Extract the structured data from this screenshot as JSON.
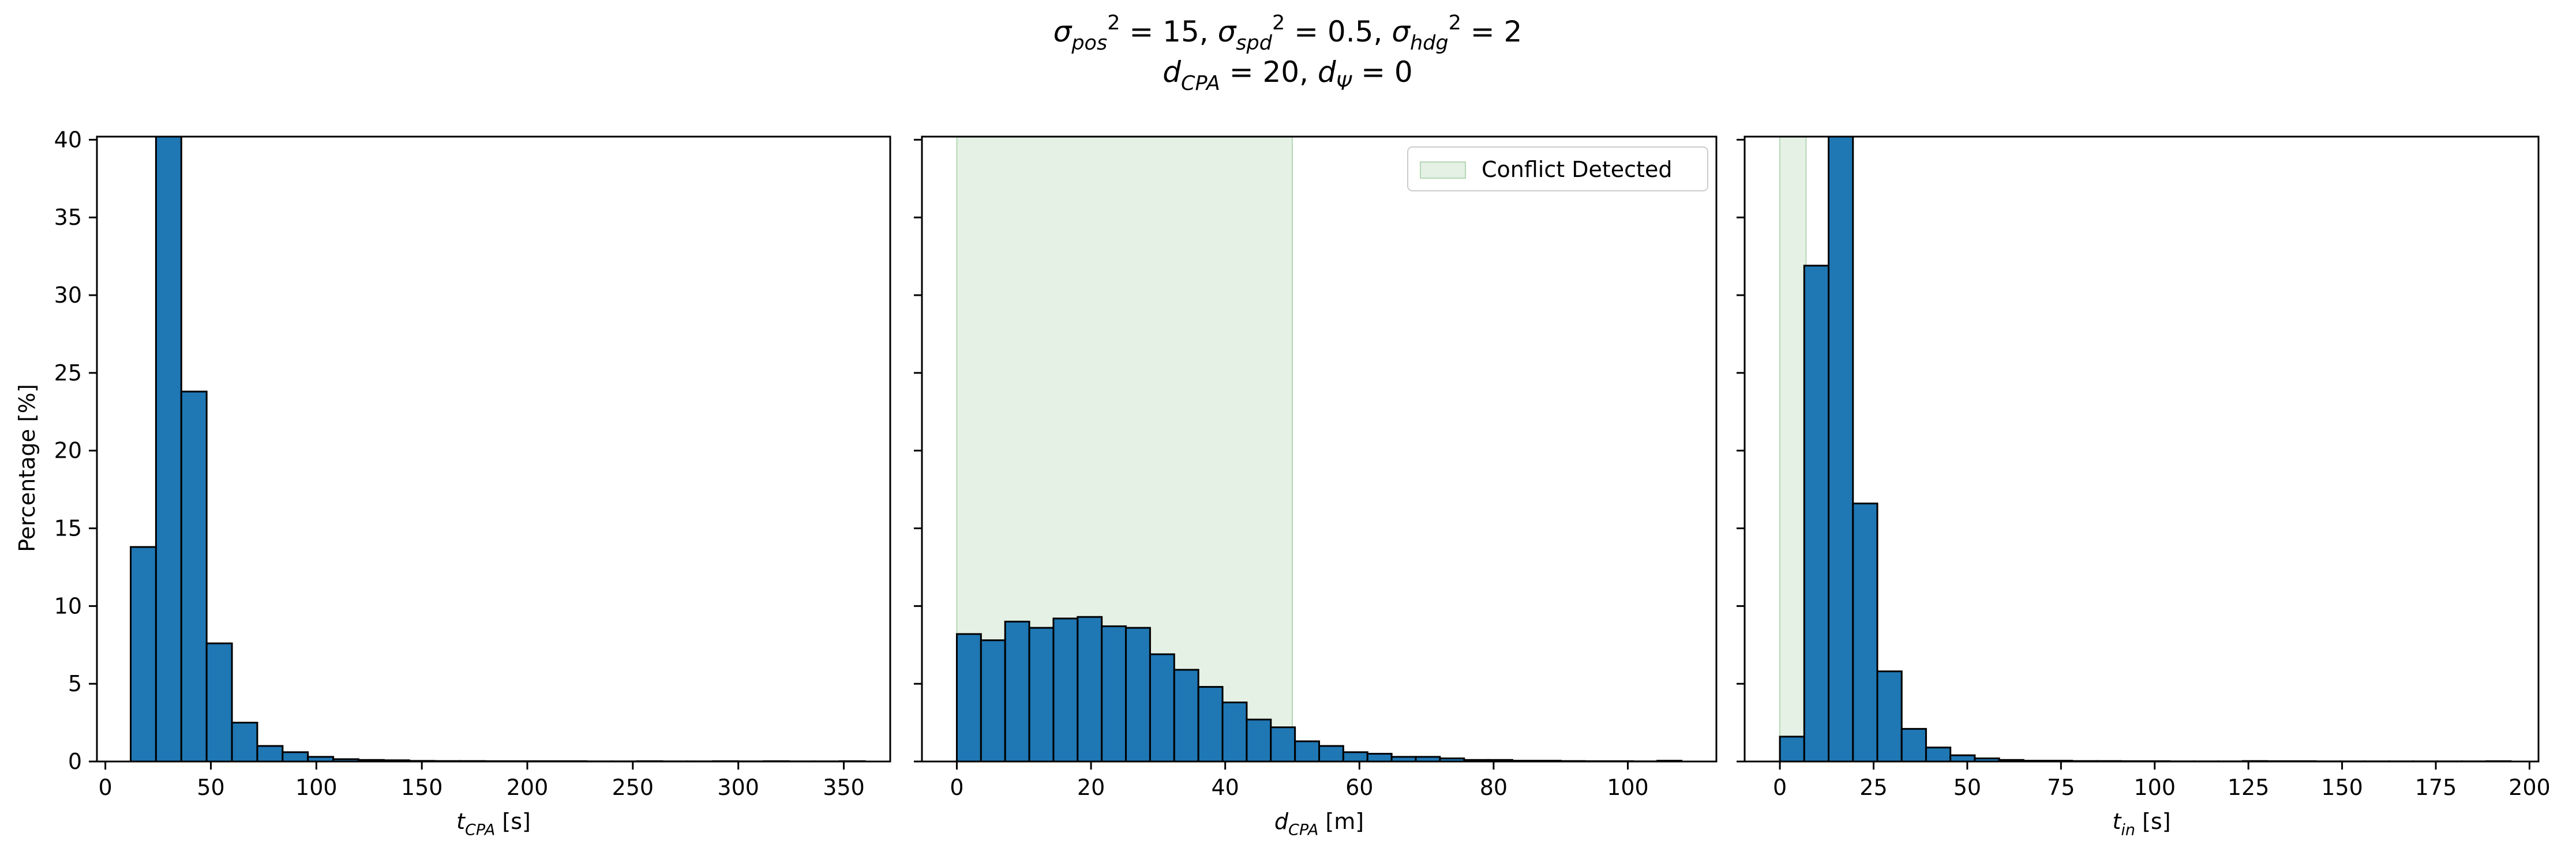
{
  "suptitle": {
    "line1": [
      {
        "t": "σ",
        "k": "n"
      },
      {
        "t": "pos",
        "k": "sub"
      },
      {
        "t": "2",
        "k": "sup"
      },
      {
        "t": " = 15, ",
        "k": "n"
      },
      {
        "t": "σ",
        "k": "n"
      },
      {
        "t": "spd",
        "k": "sub"
      },
      {
        "t": "2",
        "k": "sup"
      },
      {
        "t": " = 0.5, ",
        "k": "n"
      },
      {
        "t": "σ",
        "k": "n"
      },
      {
        "t": "hdg",
        "k": "sub"
      },
      {
        "t": "2",
        "k": "sup"
      },
      {
        "t": " = 2",
        "k": "n"
      }
    ],
    "line2": [
      {
        "t": "d",
        "k": "i"
      },
      {
        "t": "CPA",
        "k": "sub"
      },
      {
        "t": " = 20, ",
        "k": "n"
      },
      {
        "t": "d",
        "k": "i"
      },
      {
        "t": "Ψ",
        "k": "sub"
      },
      {
        "t": " = 0",
        "k": "n"
      }
    ]
  },
  "colors": {
    "bar_fill": "#1f77b4",
    "bar_edge": "#000000",
    "conflict_fill": "#e5f1e5",
    "conflict_edge": "#b5d8b5",
    "axes": "#000000"
  },
  "shared_ylabel": "Percentage [%]",
  "legend_label": "Conflict Detected",
  "chart_data": [
    {
      "type": "bar",
      "histogram": true,
      "xlabel_parts": [
        {
          "t": "t",
          "k": "i"
        },
        {
          "t": "CPA",
          "k": "sub"
        },
        {
          "t": " [s]",
          "k": "n"
        }
      ],
      "xlim": [
        -4,
        372
      ],
      "ylim": [
        0,
        40.2
      ],
      "xticks": [
        0,
        50,
        100,
        150,
        200,
        250,
        300,
        350
      ],
      "yticks": [
        0,
        5,
        10,
        15,
        20,
        25,
        30,
        35,
        40
      ],
      "bin_edges": [
        12,
        24,
        36,
        48,
        60,
        72,
        84,
        96,
        108,
        120,
        132,
        144,
        156,
        168,
        180,
        192,
        204,
        216,
        228,
        240,
        252,
        264,
        276,
        288,
        300,
        312,
        324,
        336,
        348,
        360
      ],
      "values": [
        13.8,
        40.2,
        23.8,
        7.6,
        2.5,
        1.0,
        0.6,
        0.3,
        0.15,
        0.1,
        0.08,
        0.04,
        0.03,
        0.03,
        0.02,
        0.02,
        0.02,
        0.02,
        0.01,
        0.01,
        0.02,
        0.01,
        0.01,
        0.02,
        0.01,
        0.02,
        0.01,
        0.01,
        0.02
      ],
      "conflict_region": null
    },
    {
      "type": "bar",
      "histogram": true,
      "xlabel_parts": [
        {
          "t": "d",
          "k": "i"
        },
        {
          "t": "CPA",
          "k": "sub"
        },
        {
          "t": " [m]",
          "k": "n"
        }
      ],
      "xlim": [
        -5.2,
        113.2
      ],
      "ylim": [
        0,
        40.2
      ],
      "xticks": [
        0,
        20,
        40,
        60,
        80,
        100
      ],
      "yticks": [
        0,
        5,
        10,
        15,
        20,
        25,
        30,
        35,
        40
      ],
      "bin_edges": [
        0,
        3.6,
        7.2,
        10.8,
        14.4,
        18.0,
        21.6,
        25.2,
        28.8,
        32.4,
        36.0,
        39.6,
        43.2,
        46.8,
        50.4,
        54.0,
        57.6,
        61.2,
        64.8,
        68.4,
        72.0,
        75.6,
        79.2,
        82.8,
        86.4,
        90.0,
        93.6,
        97.2,
        100.8,
        104.4,
        108.0
      ],
      "values": [
        8.2,
        7.8,
        9.0,
        8.6,
        9.2,
        9.3,
        8.7,
        8.6,
        6.9,
        5.9,
        4.8,
        3.8,
        2.7,
        2.2,
        1.3,
        1.0,
        0.6,
        0.5,
        0.3,
        0.3,
        0.2,
        0.1,
        0.1,
        0.05,
        0.05,
        0.03,
        0.02,
        0.02,
        0.01,
        0.05
      ],
      "conflict_region": [
        0,
        50
      ],
      "legend": "top-right"
    },
    {
      "type": "bar",
      "histogram": true,
      "xlabel_parts": [
        {
          "t": "t",
          "k": "i"
        },
        {
          "t": "in",
          "k": "sub"
        },
        {
          "t": " [s]",
          "k": "n"
        }
      ],
      "xlim": [
        -9.4,
        202.4
      ],
      "ylim": [
        0,
        40.2
      ],
      "xticks": [
        0,
        25,
        50,
        75,
        100,
        125,
        150,
        175,
        200
      ],
      "yticks": [
        0,
        5,
        10,
        15,
        20,
        25,
        30,
        35,
        40
      ],
      "bin_edges": [
        0,
        6.5,
        13.0,
        19.5,
        26.0,
        32.5,
        39.0,
        45.5,
        52.0,
        58.5,
        65.0,
        71.5,
        78.0,
        84.5,
        91.0,
        97.5,
        104.0,
        110.5,
        117.0,
        123.5,
        130.0,
        136.5,
        143.0,
        149.5,
        156.0,
        162.5,
        169.0,
        175.5,
        182.0,
        188.5,
        195.0
      ],
      "values": [
        1.6,
        31.9,
        40.2,
        16.6,
        5.8,
        2.1,
        0.9,
        0.4,
        0.2,
        0.1,
        0.05,
        0.05,
        0.03,
        0.03,
        0.02,
        0.02,
        0.01,
        0.01,
        0.01,
        0.03,
        0.02,
        0.02,
        0.01,
        0.01,
        0.01,
        0.01,
        0.01,
        0.01,
        0.01,
        0.02
      ],
      "conflict_region": [
        0,
        7
      ]
    }
  ]
}
